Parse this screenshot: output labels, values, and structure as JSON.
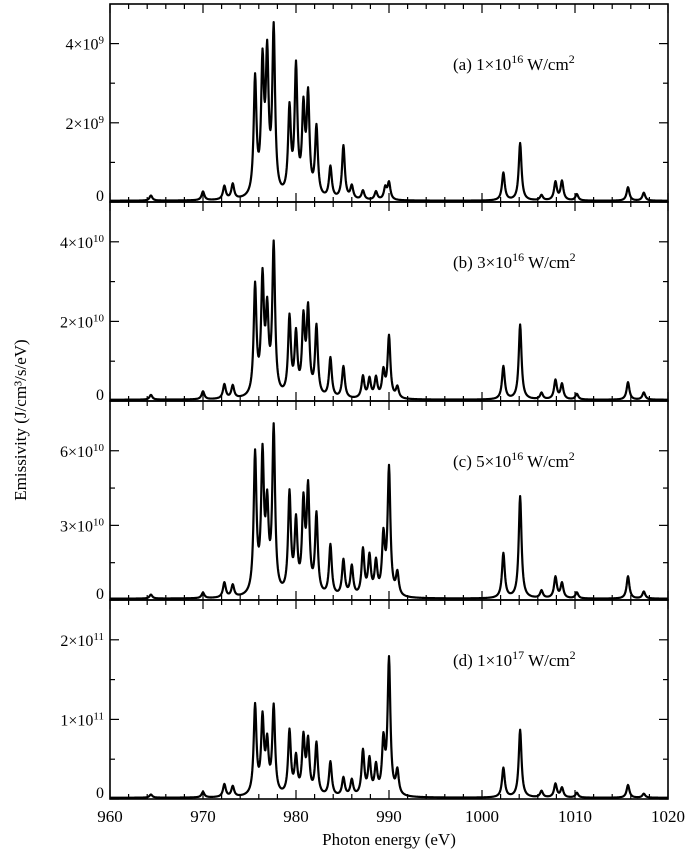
{
  "chart_data": {
    "type": "line",
    "xlabel": "Photon energy (eV)",
    "ylabel": "Emissivity (J/cm³/s/eV)",
    "xlim": [
      960,
      1020
    ],
    "x_ticks": [
      960,
      970,
      980,
      990,
      1000,
      1010,
      1020
    ],
    "x_tick_labels": [
      "960",
      "970",
      "980",
      "990",
      "1000",
      "1010",
      "1020"
    ],
    "panels": [
      {
        "label_prefix": "(a) 1×10",
        "label_exp": "16",
        "label_suffix": " W/cm",
        "label_unit_exp": "2",
        "ylim": [
          0,
          5000000000.0
        ],
        "y_ticks": [
          {
            "value": 0,
            "mantissa": "0",
            "exp": ""
          },
          {
            "value": 2000000000.0,
            "mantissa": "2×10",
            "exp": "9"
          },
          {
            "value": 4000000000.0,
            "mantissa": "4×10",
            "exp": "9"
          }
        ],
        "baseline": 30000000.0,
        "peaks": [
          {
            "x": 964.4,
            "y": 130000000.0
          },
          {
            "x": 970.0,
            "y": 220000000.0
          },
          {
            "x": 972.3,
            "y": 340000000.0
          },
          {
            "x": 973.2,
            "y": 380000000.0
          },
          {
            "x": 975.6,
            "y": 2950000000.0
          },
          {
            "x": 976.4,
            "y": 3200000000.0
          },
          {
            "x": 976.9,
            "y": 3350000000.0
          },
          {
            "x": 977.6,
            "y": 4150000000.0
          },
          {
            "x": 979.3,
            "y": 2150000000.0
          },
          {
            "x": 980.0,
            "y": 3200000000.0
          },
          {
            "x": 980.8,
            "y": 2100000000.0
          },
          {
            "x": 981.3,
            "y": 2450000000.0
          },
          {
            "x": 982.2,
            "y": 1750000000.0
          },
          {
            "x": 983.7,
            "y": 800000000.0
          },
          {
            "x": 985.1,
            "y": 1350000000.0
          },
          {
            "x": 986.0,
            "y": 330000000.0
          },
          {
            "x": 987.2,
            "y": 230000000.0
          },
          {
            "x": 988.6,
            "y": 210000000.0
          },
          {
            "x": 989.6,
            "y": 300000000.0
          },
          {
            "x": 990.0,
            "y": 430000000.0
          },
          {
            "x": 1002.3,
            "y": 700000000.0
          },
          {
            "x": 1004.1,
            "y": 1450000000.0
          },
          {
            "x": 1006.4,
            "y": 130000000.0
          },
          {
            "x": 1007.9,
            "y": 460000000.0
          },
          {
            "x": 1008.6,
            "y": 480000000.0
          },
          {
            "x": 1010.2,
            "y": 160000000.0
          },
          {
            "x": 1015.7,
            "y": 340000000.0
          },
          {
            "x": 1017.4,
            "y": 200000000.0
          }
        ]
      },
      {
        "label_prefix": "(b) 3×10",
        "label_exp": "16",
        "label_suffix": " W/cm",
        "label_unit_exp": "2",
        "ylim": [
          0,
          50000000000.0
        ],
        "y_ticks": [
          {
            "value": 0,
            "mantissa": "0",
            "exp": ""
          },
          {
            "value": 20000000000.0,
            "mantissa": "2×10",
            "exp": "10"
          },
          {
            "value": 40000000000.0,
            "mantissa": "4×10",
            "exp": "10"
          }
        ],
        "baseline": 300000000.0,
        "peaks": [
          {
            "x": 964.4,
            "y": 1200000000.0
          },
          {
            "x": 970.0,
            "y": 2000000000.0
          },
          {
            "x": 972.3,
            "y": 3600000000.0
          },
          {
            "x": 973.2,
            "y": 3200000000.0
          },
          {
            "x": 975.6,
            "y": 27500000000.0
          },
          {
            "x": 976.4,
            "y": 28500000000.0
          },
          {
            "x": 976.9,
            "y": 19500000000.0
          },
          {
            "x": 977.6,
            "y": 37500000000.0
          },
          {
            "x": 979.3,
            "y": 19500000000.0
          },
          {
            "x": 980.0,
            "y": 15000000000.0
          },
          {
            "x": 980.8,
            "y": 18500000000.0
          },
          {
            "x": 981.3,
            "y": 21000000000.0
          },
          {
            "x": 982.2,
            "y": 17500000000.0
          },
          {
            "x": 983.7,
            "y": 10000000000.0
          },
          {
            "x": 985.1,
            "y": 8000000000.0
          },
          {
            "x": 987.2,
            "y": 5500000000.0
          },
          {
            "x": 987.9,
            "y": 4800000000.0
          },
          {
            "x": 988.6,
            "y": 5000000000.0
          },
          {
            "x": 989.4,
            "y": 6500000000.0
          },
          {
            "x": 990.0,
            "y": 15500000000.0
          },
          {
            "x": 990.9,
            "y": 2800000000.0
          },
          {
            "x": 1002.3,
            "y": 8300000000.0
          },
          {
            "x": 1004.1,
            "y": 18800000000.0
          },
          {
            "x": 1006.4,
            "y": 1600000000.0
          },
          {
            "x": 1007.9,
            "y": 4800000000.0
          },
          {
            "x": 1008.6,
            "y": 3800000000.0
          },
          {
            "x": 1010.2,
            "y": 1400000000.0
          },
          {
            "x": 1015.7,
            "y": 4400000000.0
          },
          {
            "x": 1017.4,
            "y": 1800000000.0
          }
        ]
      },
      {
        "label_prefix": "(c) 5×10",
        "label_exp": "16",
        "label_suffix": " W/cm",
        "label_unit_exp": "2",
        "ylim": [
          0,
          80000000000.0
        ],
        "y_ticks": [
          {
            "value": 0,
            "mantissa": "0",
            "exp": ""
          },
          {
            "value": 30000000000.0,
            "mantissa": "3×10",
            "exp": "10"
          },
          {
            "value": 60000000000.0,
            "mantissa": "6×10",
            "exp": "10"
          }
        ],
        "baseline": 500000000.0,
        "peaks": [
          {
            "x": 964.4,
            "y": 1600000000.0
          },
          {
            "x": 970.0,
            "y": 2200000000.0
          },
          {
            "x": 972.3,
            "y": 6000000000.0
          },
          {
            "x": 973.2,
            "y": 4800000000.0
          },
          {
            "x": 975.6,
            "y": 56000000000.0
          },
          {
            "x": 976.4,
            "y": 54000000000.0
          },
          {
            "x": 976.9,
            "y": 32000000000.0
          },
          {
            "x": 977.6,
            "y": 66000000000.0
          },
          {
            "x": 979.3,
            "y": 40000000000.0
          },
          {
            "x": 980.0,
            "y": 28000000000.0
          },
          {
            "x": 980.8,
            "y": 35000000000.0
          },
          {
            "x": 981.3,
            "y": 41000000000.0
          },
          {
            "x": 982.2,
            "y": 32000000000.0
          },
          {
            "x": 983.7,
            "y": 20500000000.0
          },
          {
            "x": 985.1,
            "y": 14500000000.0
          },
          {
            "x": 986.0,
            "y": 12000000000.0
          },
          {
            "x": 987.2,
            "y": 18500000000.0
          },
          {
            "x": 987.9,
            "y": 15500000000.0
          },
          {
            "x": 988.6,
            "y": 13000000000.0
          },
          {
            "x": 989.4,
            "y": 23000000000.0
          },
          {
            "x": 990.0,
            "y": 51000000000.0
          },
          {
            "x": 990.9,
            "y": 9000000000.0
          },
          {
            "x": 1002.3,
            "y": 18000000000.0
          },
          {
            "x": 1004.1,
            "y": 41000000000.0
          },
          {
            "x": 1006.4,
            "y": 3000000000.0
          },
          {
            "x": 1007.9,
            "y": 8500000000.0
          },
          {
            "x": 1008.6,
            "y": 6000000000.0
          },
          {
            "x": 1010.2,
            "y": 2400000000.0
          },
          {
            "x": 1015.7,
            "y": 9000000000.0
          },
          {
            "x": 1017.4,
            "y": 2800000000.0
          }
        ]
      },
      {
        "label_prefix": "(d) 1×10",
        "label_exp": "17",
        "label_suffix": " W/cm",
        "label_unit_exp": "2",
        "ylim": [
          0,
          250000000000.0
        ],
        "y_ticks": [
          {
            "value": 0,
            "mantissa": "0",
            "exp": ""
          },
          {
            "value": 100000000000.0,
            "mantissa": "1×10",
            "exp": "11"
          },
          {
            "value": 200000000000.0,
            "mantissa": "2×10",
            "exp": "11"
          }
        ],
        "baseline": 1500000000.0,
        "peaks": [
          {
            "x": 964.4,
            "y": 4000000000.0
          },
          {
            "x": 970.0,
            "y": 7000000000.0
          },
          {
            "x": 972.3,
            "y": 16000000000.0
          },
          {
            "x": 973.2,
            "y": 13000000000.0
          },
          {
            "x": 975.6,
            "y": 112000000000.0
          },
          {
            "x": 976.4,
            "y": 93000000000.0
          },
          {
            "x": 976.9,
            "y": 60000000000.0
          },
          {
            "x": 977.6,
            "y": 110000000000.0
          },
          {
            "x": 979.3,
            "y": 80000000000.0
          },
          {
            "x": 980.0,
            "y": 45000000000.0
          },
          {
            "x": 980.8,
            "y": 70000000000.0
          },
          {
            "x": 981.3,
            "y": 65000000000.0
          },
          {
            "x": 982.2,
            "y": 65000000000.0
          },
          {
            "x": 983.7,
            "y": 43000000000.0
          },
          {
            "x": 985.1,
            "y": 23000000000.0
          },
          {
            "x": 986.0,
            "y": 20000000000.0
          },
          {
            "x": 987.2,
            "y": 56000000000.0
          },
          {
            "x": 987.9,
            "y": 44000000000.0
          },
          {
            "x": 988.6,
            "y": 35000000000.0
          },
          {
            "x": 989.4,
            "y": 65000000000.0
          },
          {
            "x": 990.0,
            "y": 170000000000.0
          },
          {
            "x": 990.9,
            "y": 30000000000.0
          },
          {
            "x": 1002.3,
            "y": 37000000000.0
          },
          {
            "x": 1004.1,
            "y": 85000000000.0
          },
          {
            "x": 1006.4,
            "y": 8000000000.0
          },
          {
            "x": 1007.9,
            "y": 17000000000.0
          },
          {
            "x": 1008.6,
            "y": 12000000000.0
          },
          {
            "x": 1010.2,
            "y": 6000000000.0
          },
          {
            "x": 1015.7,
            "y": 16000000000.0
          },
          {
            "x": 1017.4,
            "y": 5000000000.0
          }
        ]
      }
    ]
  }
}
